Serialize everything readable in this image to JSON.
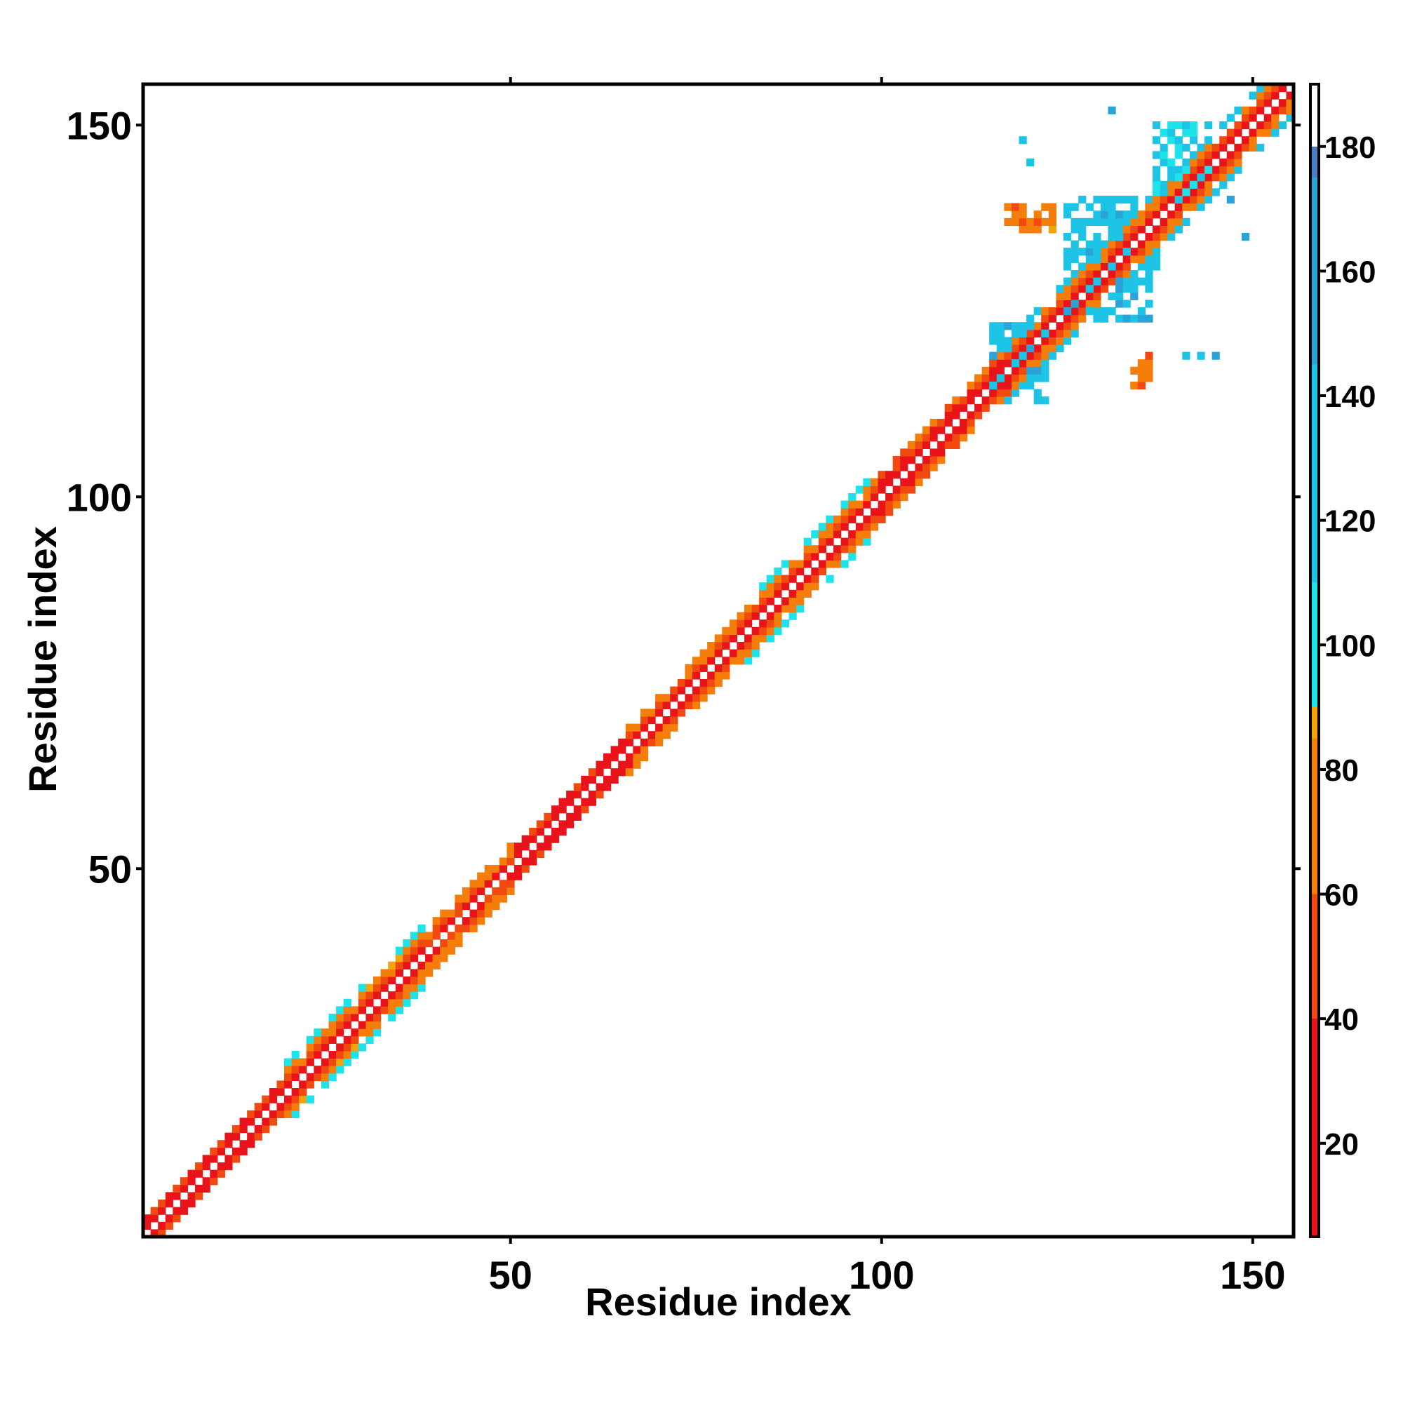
{
  "chart_data": {
    "type": "heatmap",
    "title": "",
    "xlabel": "Residue index",
    "ylabel": "Residue index",
    "xlim": [
      1,
      155
    ],
    "ylim": [
      1,
      155
    ],
    "x_ticks": [
      50,
      100,
      150
    ],
    "y_ticks": [
      50,
      100,
      150
    ],
    "grid": false,
    "legend": "colorbar-right",
    "colorbar": {
      "min": 5,
      "max": 190,
      "ticks": [
        20,
        40,
        60,
        80,
        100,
        120,
        140,
        160,
        180
      ],
      "stops": [
        {
          "value": 5,
          "color": "#e8141a"
        },
        {
          "value": 40,
          "color": "#f04a10"
        },
        {
          "value": 60,
          "color": "#f57d0a"
        },
        {
          "value": 85,
          "color": "#f5a30a"
        },
        {
          "value": 90,
          "color": "#1ee3ea"
        },
        {
          "value": 110,
          "color": "#1ec4e6"
        },
        {
          "value": 145,
          "color": "#2aa3d8"
        },
        {
          "value": 175,
          "color": "#4a7fc4"
        },
        {
          "value": 180,
          "color": "#ffffff"
        },
        {
          "value": 190,
          "color": "#ffffff"
        }
      ]
    },
    "diagonal_segments": [
      {
        "from": 1,
        "to": 20,
        "band": [
          18,
          35,
          60,
          75
        ],
        "halfwidth": 2
      },
      {
        "from": 20,
        "to": 38,
        "band": [
          30,
          45,
          75,
          100
        ],
        "halfwidth": 4
      },
      {
        "from": 38,
        "to": 50,
        "band": [
          35,
          55,
          70,
          85
        ],
        "halfwidth": 3
      },
      {
        "from": 50,
        "to": 66,
        "band": [
          15,
          30,
          45,
          60
        ],
        "halfwidth": 2
      },
      {
        "from": 66,
        "to": 82,
        "band": [
          30,
          50,
          70,
          95
        ],
        "halfwidth": 3
      },
      {
        "from": 82,
        "to": 98,
        "band": [
          30,
          50,
          70,
          100
        ],
        "halfwidth": 4
      },
      {
        "from": 98,
        "to": 118,
        "band": [
          20,
          35,
          55,
          75
        ],
        "halfwidth": 3
      },
      {
        "from": 118,
        "to": 155,
        "band": [
          25,
          45,
          65,
          110
        ],
        "halfwidth": 4
      }
    ],
    "off_diagonal_clusters": [
      {
        "x": [
          115,
          122
        ],
        "y": [
          113,
          123
        ],
        "value": 130
      },
      {
        "x": [
          125,
          136
        ],
        "y": [
          124,
          131
        ],
        "value": 135
      },
      {
        "x": [
          125,
          137
        ],
        "y": [
          131,
          140
        ],
        "value": 130
      },
      {
        "x": [
          117,
          123
        ],
        "y": [
          136,
          139
        ],
        "value": 70
      },
      {
        "x": [
          137,
          144
        ],
        "y": [
          140,
          150
        ],
        "value": 110
      },
      {
        "x": [
          134,
          136
        ],
        "y": [
          115,
          119
        ],
        "value": 70
      }
    ],
    "isolated_points": [
      {
        "x": 131,
        "y": 152,
        "value": 150
      },
      {
        "x": 119,
        "y": 148,
        "value": 120
      },
      {
        "x": 137,
        "y": 148,
        "value": 150
      },
      {
        "x": 149,
        "y": 135,
        "value": 150
      },
      {
        "x": 141,
        "y": 119,
        "value": 120
      },
      {
        "x": 143,
        "y": 119,
        "value": 120
      },
      {
        "x": 145,
        "y": 119,
        "value": 150
      },
      {
        "x": 120,
        "y": 145,
        "value": 120
      },
      {
        "x": 147,
        "y": 140,
        "value": 150
      }
    ]
  }
}
